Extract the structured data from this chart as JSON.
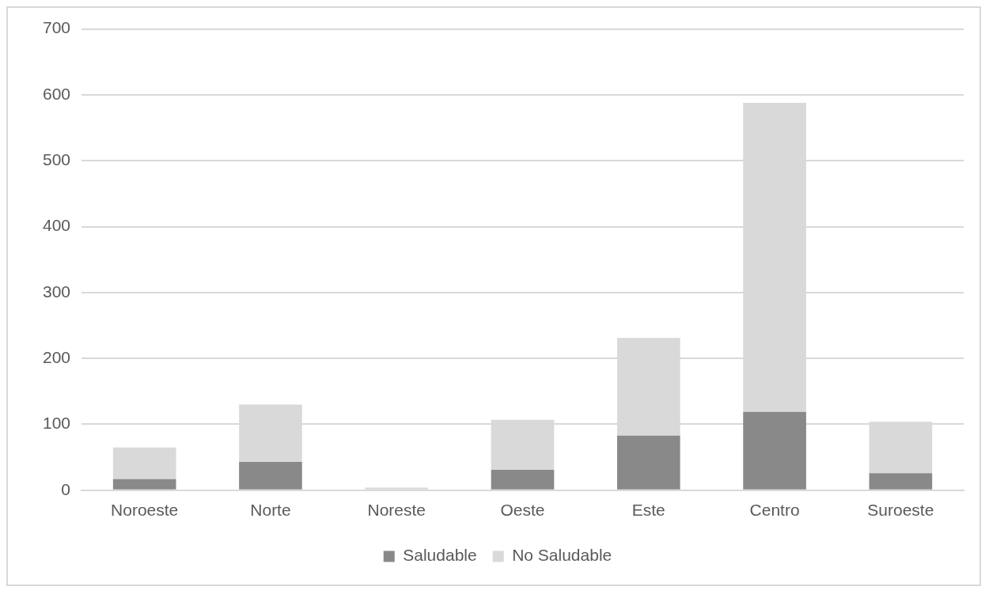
{
  "chart_data": {
    "type": "bar",
    "stacked": true,
    "categories": [
      "Noroeste",
      "Norte",
      "Noreste",
      "Oeste",
      "Este",
      "Centro",
      "Suroeste"
    ],
    "series": [
      {
        "name": "Saludable",
        "color": "#898989",
        "values": [
          17,
          43,
          0,
          31,
          83,
          119,
          26
        ]
      },
      {
        "name": "No Saludable",
        "color": "#d9d9d9",
        "values": [
          48,
          87,
          4,
          76,
          148,
          469,
          78
        ]
      }
    ],
    "ylim": [
      0,
      700
    ],
    "yticks": [
      0,
      100,
      200,
      300,
      400,
      500,
      600,
      700
    ],
    "grid": "y",
    "legend": "bottom"
  }
}
